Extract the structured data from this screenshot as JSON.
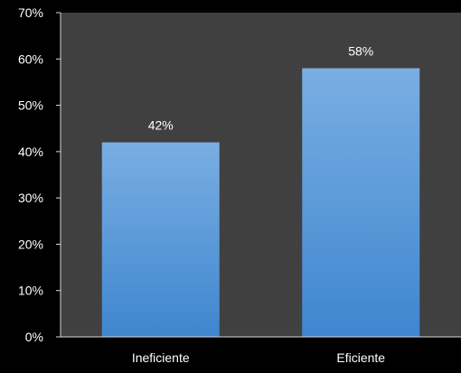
{
  "chart_data": {
    "type": "bar",
    "title": "",
    "xlabel": "",
    "ylabel": "",
    "categories": [
      "Ineficiente",
      "Eficiente"
    ],
    "values": [
      42,
      58
    ],
    "value_labels": [
      "42%",
      "58%"
    ],
    "ylim": [
      0,
      70
    ],
    "y_ticks": [
      0,
      10,
      20,
      30,
      40,
      50,
      60,
      70
    ],
    "y_tick_labels": [
      "0%",
      "10%",
      "20%",
      "30%",
      "40%",
      "50%",
      "60%",
      "70%"
    ],
    "grid": false,
    "legend": "none",
    "colors": {
      "page_background": "#000000",
      "plot_background": "#404040",
      "bar_top": "#79aee2",
      "bar_bottom": "#3f86cf",
      "text": "#ffffff",
      "axis": "#d9d9d9"
    }
  }
}
